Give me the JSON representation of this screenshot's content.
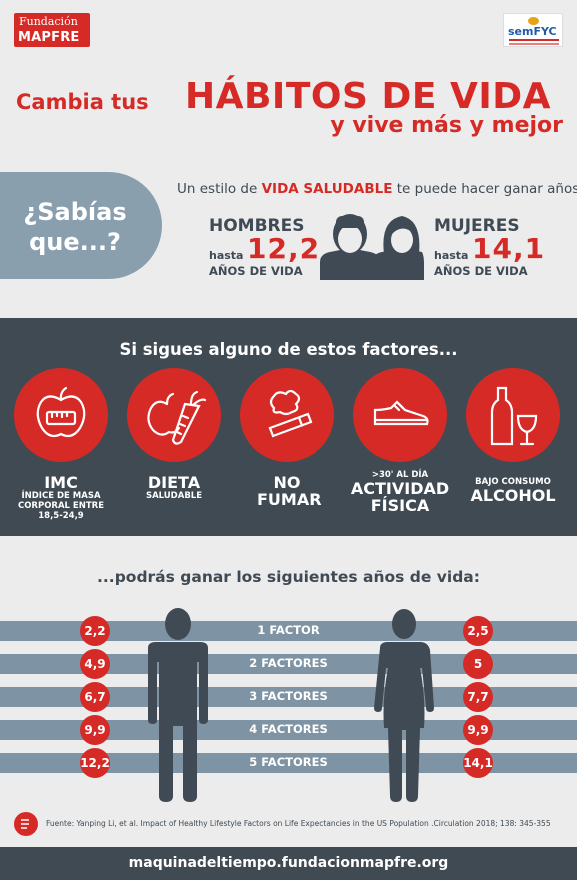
{
  "logos": {
    "fundacion_line1": "Fundación",
    "fundacion_line2": "MAPFRE",
    "semfyc": "semFYC"
  },
  "title": {
    "part1": "Cambia tus",
    "highlight": "HÁBITOS DE VIDA",
    "part2": "y vive más y mejor"
  },
  "sabias": {
    "line1": "¿Sabías",
    "line2": "que...?"
  },
  "intro": {
    "before": "Un estilo de",
    "highlight": "VIDA SALUDABLE",
    "after": "te puede hacer ganar años:"
  },
  "hombres": {
    "label": "HOMBRES",
    "hasta": "hasta",
    "years": "12,2",
    "anos": "AÑOS DE VIDA"
  },
  "mujeres": {
    "label": "MUJERES",
    "hasta": "hasta",
    "years": "14,1",
    "anos": "AÑOS DE VIDA"
  },
  "factors_title": "Si sigues alguno de estos factores...",
  "factors": [
    {
      "icon": "apple-measure-icon",
      "pre": "",
      "big": "IMC",
      "small": "ÍNDICE DE MASA CORPORAL ENTRE 18,5-24,9"
    },
    {
      "icon": "apple-carrot-icon",
      "pre": "",
      "big": "DIETA",
      "small": "SALUDABLE"
    },
    {
      "icon": "cigarette-icon",
      "pre": "",
      "big": "NO FUMAR",
      "small": ""
    },
    {
      "icon": "sneaker-icon",
      "pre": ">30' AL DÍA",
      "big": "ACTIVIDAD FÍSICA",
      "small": ""
    },
    {
      "icon": "bottle-glass-icon",
      "pre": "BAJO CONSUMO",
      "big": "ALCOHOL",
      "small": ""
    }
  ],
  "years_title": "...podrás ganar los siguientes años de vida:",
  "rows": [
    {
      "label": "1 FACTOR",
      "men": "2,2",
      "women": "2,5"
    },
    {
      "label": "2 FACTORES",
      "men": "4,9",
      "women": "5"
    },
    {
      "label": "3 FACTORES",
      "men": "6,7",
      "women": "7,7"
    },
    {
      "label": "4 FACTORES",
      "men": "9,9",
      "women": "9,9"
    },
    {
      "label": "5 FACTORES",
      "men": "12,2",
      "women": "14,1"
    }
  ],
  "source": "Fuente: Yanping Li, et al.  Impact of Healthy Lifestyle Factors on Life Expectancies in the US Population .Circulation  2018; 138: 345-355",
  "footer_url": "maquinadeltiempo.fundacionmapfre.org",
  "colors": {
    "red": "#d62a27",
    "dark": "#404a53",
    "slate": "#7e93a3",
    "light": "#ececec"
  }
}
